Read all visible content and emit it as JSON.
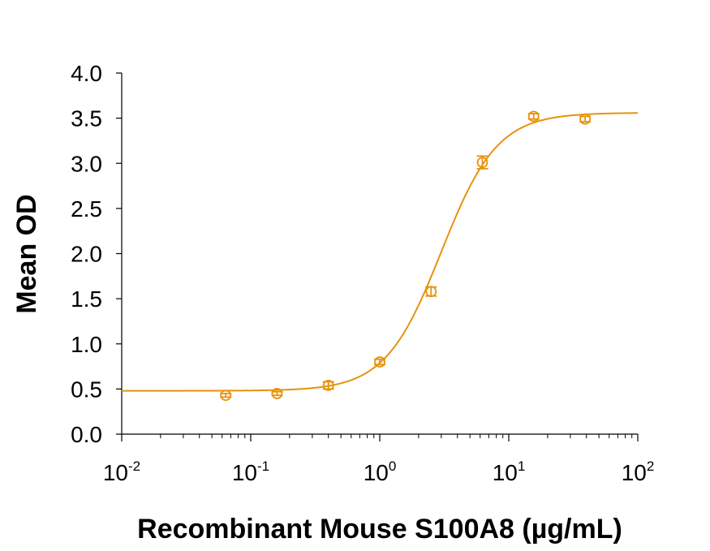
{
  "chart_data": {
    "type": "scatter",
    "xlabel": "Recombinant Mouse S100A8 (µg/mL)",
    "ylabel": "Mean OD",
    "x_scale": "log",
    "xlim": [
      0.01,
      100
    ],
    "ylim": [
      0,
      4
    ],
    "x_ticks": [
      {
        "base": "10",
        "exp": "-2"
      },
      {
        "base": "10",
        "exp": "-1"
      },
      {
        "base": "10",
        "exp": "0"
      },
      {
        "base": "10",
        "exp": "1"
      },
      {
        "base": "10",
        "exp": "2"
      }
    ],
    "y_ticks": [
      "0.0",
      "0.5",
      "1.0",
      "1.5",
      "2.0",
      "2.5",
      "3.0",
      "3.5",
      "4.0"
    ],
    "color": "#E8920C",
    "series": [
      {
        "marker": "open-circle",
        "x": [
          0.064,
          0.16,
          0.4,
          1.0,
          2.5,
          6.25,
          15.6,
          39.1
        ],
        "y": [
          0.43,
          0.45,
          0.54,
          0.8,
          1.58,
          3.01,
          3.52,
          3.49
        ],
        "error": [
          0.02,
          0.02,
          0.04,
          0.03,
          0.05,
          0.07,
          0.03,
          0.03
        ]
      }
    ],
    "fit_curve": {
      "model": "4PL",
      "bottom": 0.48,
      "top": 3.56,
      "ec50": 3.0,
      "hill": 2.0
    },
    "grid": false,
    "legend": "none"
  }
}
